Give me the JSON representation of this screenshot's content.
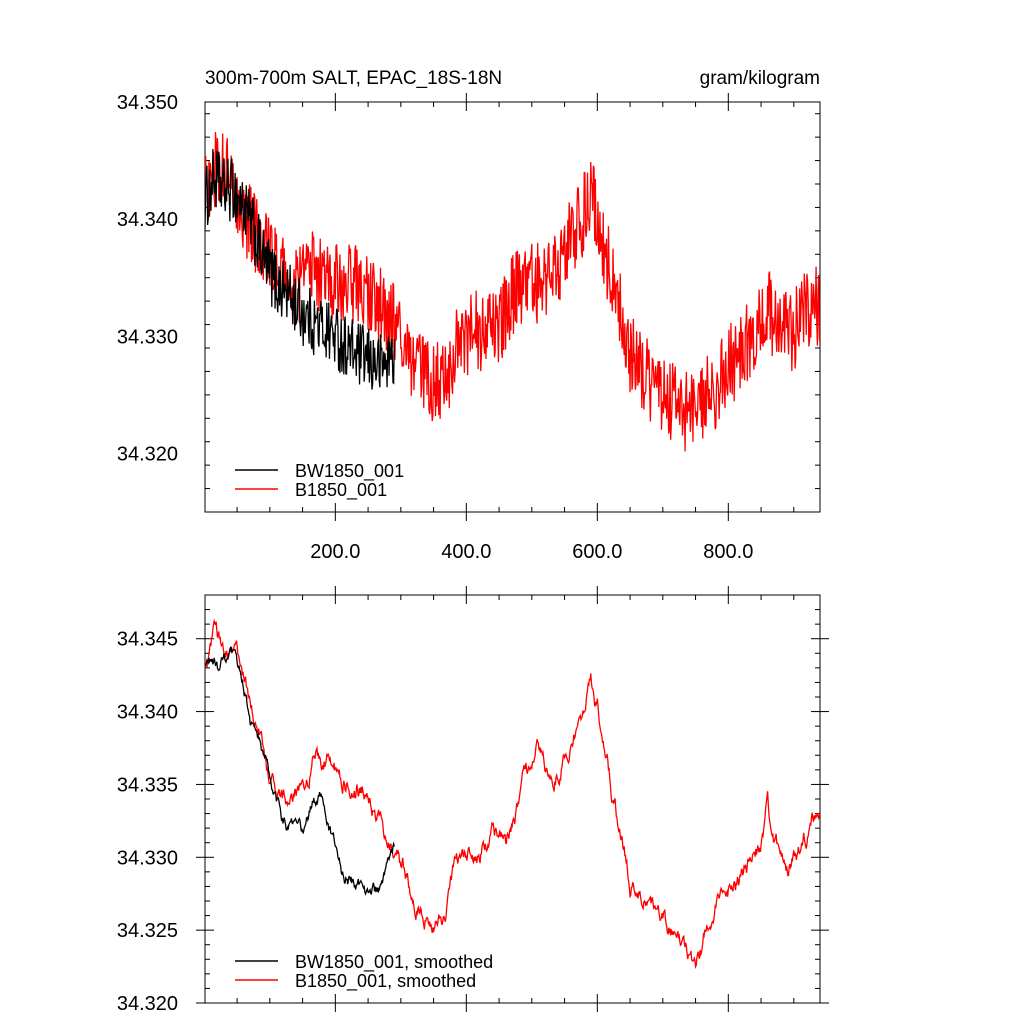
{
  "chart_data": [
    {
      "type": "line",
      "title": "300m-700m SALT, EPAC_18S-18N",
      "units": "gram/kilogram",
      "xlim": [
        1,
        940
      ],
      "ylim": [
        34.315,
        34.35
      ],
      "xticks": [
        200,
        400,
        600,
        800
      ],
      "xtick_labels": [
        "200.0",
        "400.0",
        "600.0",
        "800.0"
      ],
      "yticks": [
        34.32,
        34.33,
        34.34,
        34.35
      ],
      "ytick_labels": [
        "34.320",
        "34.330",
        "34.340",
        "34.350"
      ],
      "legend_position": "bottom-left",
      "series": [
        {
          "name": "BW1850_001",
          "color": "#000000",
          "x_range": [
            1,
            290
          ],
          "keypoints": [
            [
              1,
              34.3415
            ],
            [
              15,
              34.3435
            ],
            [
              30,
              34.3425
            ],
            [
              45,
              34.3425
            ],
            [
              60,
              34.341
            ],
            [
              75,
              34.339
            ],
            [
              90,
              34.3365
            ],
            [
              110,
              34.3345
            ],
            [
              130,
              34.3335
            ],
            [
              150,
              34.332
            ],
            [
              170,
              34.331
            ],
            [
              190,
              34.3305
            ],
            [
              210,
              34.3295
            ],
            [
              230,
              34.3285
            ],
            [
              250,
              34.328
            ],
            [
              270,
              34.3275
            ],
            [
              290,
              34.3285
            ]
          ],
          "noise": 0.0028
        },
        {
          "name": "B1850_001",
          "color": "#ff0000",
          "x_range": [
            1,
            940
          ],
          "keypoints": [
            [
              1,
              34.3425
            ],
            [
              15,
              34.3445
            ],
            [
              30,
              34.344
            ],
            [
              50,
              34.342
            ],
            [
              70,
              34.3395
            ],
            [
              90,
              34.3375
            ],
            [
              110,
              34.336
            ],
            [
              140,
              34.334
            ],
            [
              160,
              34.336
            ],
            [
              180,
              34.3355
            ],
            [
              200,
              34.3345
            ],
            [
              230,
              34.3345
            ],
            [
              260,
              34.333
            ],
            [
              290,
              34.331
            ],
            [
              310,
              34.328
            ],
            [
              330,
              34.327
            ],
            [
              350,
              34.326
            ],
            [
              365,
              34.326
            ],
            [
              390,
              34.3295
            ],
            [
              410,
              34.3305
            ],
            [
              430,
              34.3305
            ],
            [
              450,
              34.3305
            ],
            [
              470,
              34.3335
            ],
            [
              490,
              34.3345
            ],
            [
              510,
              34.3345
            ],
            [
              540,
              34.336
            ],
            [
              560,
              34.3385
            ],
            [
              580,
              34.3405
            ],
            [
              590,
              34.3415
            ],
            [
              600,
              34.3405
            ],
            [
              610,
              34.3375
            ],
            [
              630,
              34.333
            ],
            [
              650,
              34.3285
            ],
            [
              680,
              34.326
            ],
            [
              700,
              34.325
            ],
            [
              720,
              34.324
            ],
            [
              740,
              34.3235
            ],
            [
              760,
              34.3245
            ],
            [
              780,
              34.3255
            ],
            [
              800,
              34.3275
            ],
            [
              820,
              34.3285
            ],
            [
              840,
              34.3305
            ],
            [
              860,
              34.3325
            ],
            [
              880,
              34.3305
            ],
            [
              900,
              34.3305
            ],
            [
              920,
              34.3325
            ],
            [
              940,
              34.3325
            ]
          ],
          "noise": 0.0035
        }
      ]
    },
    {
      "type": "line",
      "title": "",
      "xlim": [
        1,
        940
      ],
      "ylim": [
        34.32,
        34.348
      ],
      "xticks": [
        200,
        400,
        600,
        800
      ],
      "yticks": [
        34.32,
        34.325,
        34.33,
        34.335,
        34.34,
        34.345
      ],
      "ytick_labels": [
        "34.320",
        "34.325",
        "34.330",
        "34.335",
        "34.340",
        "34.345"
      ],
      "legend_position": "bottom-left",
      "series": [
        {
          "name": "BW1850_001, smoothed",
          "color": "#000000",
          "x_range": [
            1,
            290
          ],
          "keypoints": [
            [
              1,
              34.343
            ],
            [
              10,
              34.3435
            ],
            [
              20,
              34.343
            ],
            [
              40,
              34.3435
            ],
            [
              60,
              34.342
            ],
            [
              70,
              34.3395
            ],
            [
              85,
              34.3375
            ],
            [
              100,
              34.3355
            ],
            [
              110,
              34.3335
            ],
            [
              120,
              34.3325
            ],
            [
              135,
              34.332
            ],
            [
              150,
              34.3315
            ],
            [
              165,
              34.3335
            ],
            [
              180,
              34.3345
            ],
            [
              195,
              34.3315
            ],
            [
              210,
              34.329
            ],
            [
              230,
              34.328
            ],
            [
              250,
              34.328
            ],
            [
              270,
              34.3275
            ],
            [
              290,
              34.3305
            ]
          ],
          "noise": 0.00035
        },
        {
          "name": "B1850_001, smoothed",
          "color": "#ff0000",
          "x_range": [
            1,
            940
          ],
          "keypoints": [
            [
              1,
              34.343
            ],
            [
              15,
              34.345
            ],
            [
              30,
              34.3445
            ],
            [
              45,
              34.3445
            ],
            [
              60,
              34.342
            ],
            [
              75,
              34.3395
            ],
            [
              90,
              34.3375
            ],
            [
              100,
              34.3355
            ],
            [
              110,
              34.334
            ],
            [
              130,
              34.3335
            ],
            [
              150,
              34.3345
            ],
            [
              170,
              34.337
            ],
            [
              190,
              34.3365
            ],
            [
              210,
              34.3355
            ],
            [
              230,
              34.3345
            ],
            [
              250,
              34.3345
            ],
            [
              270,
              34.332
            ],
            [
              290,
              34.3305
            ],
            [
              310,
              34.3285
            ],
            [
              330,
              34.3265
            ],
            [
              350,
              34.326
            ],
            [
              365,
              34.3255
            ],
            [
              380,
              34.329
            ],
            [
              400,
              34.3305
            ],
            [
              420,
              34.3305
            ],
            [
              440,
              34.3315
            ],
            [
              460,
              34.331
            ],
            [
              480,
              34.3335
            ],
            [
              500,
              34.3365
            ],
            [
              510,
              34.3375
            ],
            [
              520,
              34.3355
            ],
            [
              540,
              34.336
            ],
            [
              560,
              34.338
            ],
            [
              580,
              34.3405
            ],
            [
              590,
              34.342
            ],
            [
              600,
              34.3405
            ],
            [
              610,
              34.3375
            ],
            [
              630,
              34.333
            ],
            [
              650,
              34.3285
            ],
            [
              670,
              34.327
            ],
            [
              690,
              34.3255
            ],
            [
              710,
              34.325
            ],
            [
              730,
              34.3245
            ],
            [
              750,
              34.3225
            ],
            [
              770,
              34.3255
            ],
            [
              790,
              34.3275
            ],
            [
              810,
              34.328
            ],
            [
              830,
              34.3295
            ],
            [
              850,
              34.331
            ],
            [
              860,
              34.3335
            ],
            [
              870,
              34.3305
            ],
            [
              890,
              34.3295
            ],
            [
              910,
              34.3305
            ],
            [
              925,
              34.3325
            ],
            [
              940,
              34.3325
            ]
          ],
          "noise": 0.00045
        }
      ]
    }
  ]
}
